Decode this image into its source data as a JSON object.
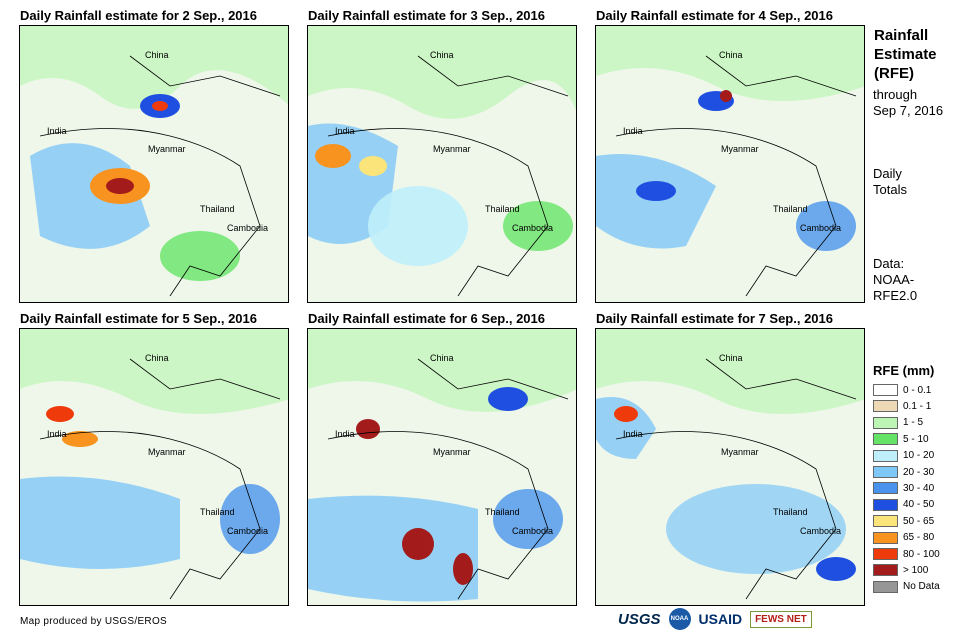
{
  "panels": [
    {
      "title": "Daily Rainfall estimate for 2 Sep., 2016"
    },
    {
      "title": "Daily Rainfall estimate for 3 Sep., 2016"
    },
    {
      "title": "Daily Rainfall estimate for 4 Sep., 2016"
    },
    {
      "title": "Daily Rainfall estimate for 5 Sep., 2016"
    },
    {
      "title": "Daily Rainfall estimate for 6 Sep., 2016"
    },
    {
      "title": "Daily Rainfall estimate for 7 Sep., 2016"
    }
  ],
  "map_labels": {
    "china": "China",
    "india": "India",
    "myanmar": "Myanmar",
    "thailand": "Thailand",
    "cambodia": "Cambodia"
  },
  "sidebar": {
    "title_lines": [
      "Rainfall",
      "Estimate",
      "(RFE)"
    ],
    "through_lines": [
      "through",
      "Sep 7, 2016"
    ],
    "daily_lines": [
      "Daily",
      "Totals"
    ],
    "data_lines": [
      "Data:",
      "NOAA-",
      "RFE2.0"
    ]
  },
  "legend": {
    "title": "RFE (mm)",
    "items": [
      {
        "label": "0 - 0.1",
        "color": "#ffffff"
      },
      {
        "label": "0.1 - 1",
        "color": "#eed9b6"
      },
      {
        "label": "1 - 5",
        "color": "#bdf5b5"
      },
      {
        "label": "5 - 10",
        "color": "#66e366"
      },
      {
        "label": "10 - 20",
        "color": "#bfeefb"
      },
      {
        "label": "20 - 30",
        "color": "#7fc7f8"
      },
      {
        "label": "30 - 40",
        "color": "#4a93ec"
      },
      {
        "label": "40 - 50",
        "color": "#1f4fe0"
      },
      {
        "label": "50 - 65",
        "color": "#fbe47a"
      },
      {
        "label": "65 - 80",
        "color": "#f7931e"
      },
      {
        "label": "80 - 100",
        "color": "#ef3b0c"
      },
      {
        "label": "> 100",
        "color": "#a31b1b"
      },
      {
        "label": "No Data",
        "color": "#969696"
      }
    ]
  },
  "footer": {
    "credit": "Map produced by USGS/EROS",
    "logos": [
      "USGS",
      "NOAA",
      "USAID",
      "FEWS NET"
    ]
  }
}
